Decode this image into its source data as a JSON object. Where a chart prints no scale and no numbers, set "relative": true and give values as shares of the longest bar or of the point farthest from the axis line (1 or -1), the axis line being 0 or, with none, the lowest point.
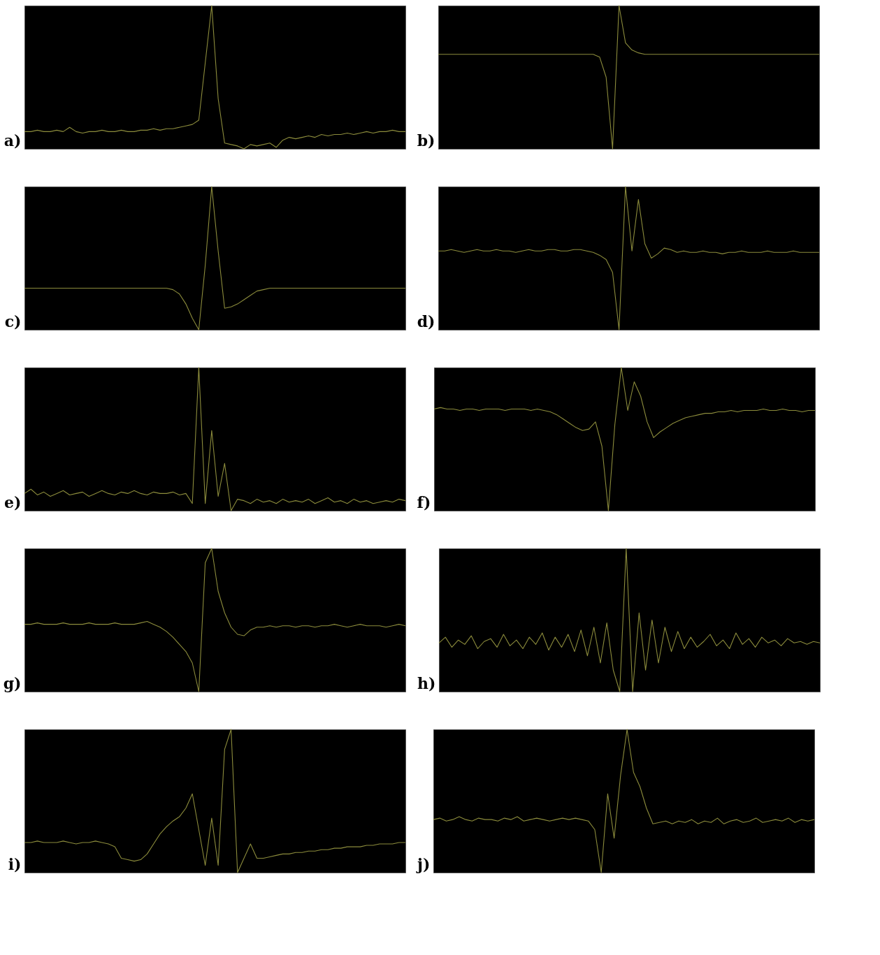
{
  "chart_data": [
    {
      "type": "line",
      "relative": true,
      "tick_labels": false,
      "title": "a)",
      "categories": [
        null,
        null,
        null,
        null,
        null,
        null,
        null,
        null,
        null,
        null,
        null,
        null,
        null,
        null,
        null,
        null,
        null,
        null,
        null,
        null,
        null,
        null,
        null,
        null,
        null,
        null,
        null,
        null,
        null,
        null,
        null,
        null,
        null,
        null,
        null,
        null,
        null,
        null,
        null,
        null,
        null,
        null,
        null,
        null,
        null,
        null,
        null,
        null,
        null,
        null,
        null,
        null,
        null,
        null,
        null,
        null,
        null,
        null,
        null,
        null
      ],
      "series": [
        {
          "color": "#8c8c3c",
          "values": [
            0.12,
            0.12,
            0.13,
            0.12,
            0.12,
            0.13,
            0.12,
            0.15,
            0.12,
            0.11,
            0.12,
            0.12,
            0.13,
            0.12,
            0.12,
            0.13,
            0.12,
            0.12,
            0.13,
            0.13,
            0.14,
            0.13,
            0.14,
            0.14,
            0.15,
            0.16,
            0.17,
            0.2,
            0.6,
            1.0,
            0.35,
            0.04,
            0.03,
            0.02,
            0.0,
            0.03,
            0.02,
            0.03,
            0.04,
            0.01,
            0.06,
            0.08,
            0.07,
            0.08,
            0.09,
            0.08,
            0.1,
            0.09,
            0.1,
            0.1,
            0.11,
            0.1,
            0.11,
            0.12,
            0.11,
            0.12,
            0.12,
            0.13,
            0.12,
            0.12
          ]
        }
      ]
    },
    {
      "type": "line",
      "relative": true,
      "tick_labels": false,
      "title": "b)",
      "categories": [
        null,
        null,
        null,
        null,
        null,
        null,
        null,
        null,
        null,
        null,
        null,
        null,
        null,
        null,
        null,
        null,
        null,
        null,
        null,
        null,
        null,
        null,
        null,
        null,
        null,
        null,
        null,
        null,
        null,
        null,
        null,
        null,
        null,
        null,
        null,
        null,
        null,
        null,
        null,
        null,
        null,
        null,
        null,
        null,
        null,
        null,
        null,
        null,
        null,
        null,
        null,
        null,
        null,
        null,
        null,
        null,
        null,
        null,
        null,
        null
      ],
      "series": [
        {
          "color": "#8c8c3c",
          "values": [
            0.66,
            0.66,
            0.66,
            0.66,
            0.66,
            0.66,
            0.66,
            0.66,
            0.66,
            0.66,
            0.66,
            0.66,
            0.66,
            0.66,
            0.66,
            0.66,
            0.66,
            0.66,
            0.66,
            0.66,
            0.66,
            0.66,
            0.66,
            0.66,
            0.66,
            0.64,
            0.5,
            0.0,
            1.0,
            0.74,
            0.69,
            0.67,
            0.66,
            0.66,
            0.66,
            0.66,
            0.66,
            0.66,
            0.66,
            0.66,
            0.66,
            0.66,
            0.66,
            0.66,
            0.66,
            0.66,
            0.66,
            0.66,
            0.66,
            0.66,
            0.66,
            0.66,
            0.66,
            0.66,
            0.66,
            0.66,
            0.66,
            0.66,
            0.66,
            0.66
          ]
        }
      ]
    },
    {
      "type": "line",
      "relative": true,
      "tick_labels": false,
      "title": "c)",
      "categories": [
        null,
        null,
        null,
        null,
        null,
        null,
        null,
        null,
        null,
        null,
        null,
        null,
        null,
        null,
        null,
        null,
        null,
        null,
        null,
        null,
        null,
        null,
        null,
        null,
        null,
        null,
        null,
        null,
        null,
        null,
        null,
        null,
        null,
        null,
        null,
        null,
        null,
        null,
        null,
        null,
        null,
        null,
        null,
        null,
        null,
        null,
        null,
        null,
        null,
        null,
        null,
        null,
        null,
        null,
        null,
        null,
        null,
        null,
        null,
        null
      ],
      "series": [
        {
          "color": "#8c8c3c",
          "values": [
            0.29,
            0.29,
            0.29,
            0.29,
            0.29,
            0.29,
            0.29,
            0.29,
            0.29,
            0.29,
            0.29,
            0.29,
            0.29,
            0.29,
            0.29,
            0.29,
            0.29,
            0.29,
            0.29,
            0.29,
            0.29,
            0.29,
            0.29,
            0.28,
            0.25,
            0.18,
            0.08,
            0.0,
            0.45,
            1.0,
            0.55,
            0.15,
            0.16,
            0.18,
            0.21,
            0.24,
            0.27,
            0.28,
            0.29,
            0.29,
            0.29,
            0.29,
            0.29,
            0.29,
            0.29,
            0.29,
            0.29,
            0.29,
            0.29,
            0.29,
            0.29,
            0.29,
            0.29,
            0.29,
            0.29,
            0.29,
            0.29,
            0.29,
            0.29,
            0.29
          ]
        }
      ]
    },
    {
      "type": "line",
      "relative": true,
      "tick_labels": false,
      "title": "d)",
      "categories": [
        null,
        null,
        null,
        null,
        null,
        null,
        null,
        null,
        null,
        null,
        null,
        null,
        null,
        null,
        null,
        null,
        null,
        null,
        null,
        null,
        null,
        null,
        null,
        null,
        null,
        null,
        null,
        null,
        null,
        null,
        null,
        null,
        null,
        null,
        null,
        null,
        null,
        null,
        null,
        null,
        null,
        null,
        null,
        null,
        null,
        null,
        null,
        null,
        null,
        null,
        null,
        null,
        null,
        null,
        null,
        null,
        null,
        null,
        null,
        null
      ],
      "series": [
        {
          "color": "#8c8c3c",
          "values": [
            0.55,
            0.55,
            0.56,
            0.55,
            0.54,
            0.55,
            0.56,
            0.55,
            0.55,
            0.56,
            0.55,
            0.55,
            0.54,
            0.55,
            0.56,
            0.55,
            0.55,
            0.56,
            0.56,
            0.55,
            0.55,
            0.56,
            0.56,
            0.55,
            0.54,
            0.52,
            0.49,
            0.4,
            0.0,
            1.0,
            0.55,
            0.91,
            0.6,
            0.5,
            0.53,
            0.57,
            0.56,
            0.54,
            0.55,
            0.54,
            0.54,
            0.55,
            0.54,
            0.54,
            0.53,
            0.54,
            0.54,
            0.55,
            0.54,
            0.54,
            0.54,
            0.55,
            0.54,
            0.54,
            0.54,
            0.55,
            0.54,
            0.54,
            0.54,
            0.54
          ]
        }
      ]
    },
    {
      "type": "line",
      "relative": true,
      "tick_labels": false,
      "title": "e)",
      "categories": [
        null,
        null,
        null,
        null,
        null,
        null,
        null,
        null,
        null,
        null,
        null,
        null,
        null,
        null,
        null,
        null,
        null,
        null,
        null,
        null,
        null,
        null,
        null,
        null,
        null,
        null,
        null,
        null,
        null,
        null,
        null,
        null,
        null,
        null,
        null,
        null,
        null,
        null,
        null,
        null,
        null,
        null,
        null,
        null,
        null,
        null,
        null,
        null,
        null,
        null,
        null,
        null,
        null,
        null,
        null,
        null,
        null,
        null,
        null,
        null
      ],
      "series": [
        {
          "color": "#8c8c3c",
          "values": [
            0.12,
            0.15,
            0.11,
            0.13,
            0.1,
            0.12,
            0.14,
            0.11,
            0.12,
            0.13,
            0.1,
            0.12,
            0.14,
            0.12,
            0.11,
            0.13,
            0.12,
            0.14,
            0.12,
            0.11,
            0.13,
            0.12,
            0.12,
            0.13,
            0.11,
            0.12,
            0.05,
            1.0,
            0.05,
            0.56,
            0.1,
            0.33,
            0.0,
            0.08,
            0.07,
            0.05,
            0.08,
            0.06,
            0.07,
            0.05,
            0.08,
            0.06,
            0.07,
            0.06,
            0.08,
            0.05,
            0.07,
            0.09,
            0.06,
            0.07,
            0.05,
            0.08,
            0.06,
            0.07,
            0.05,
            0.06,
            0.07,
            0.06,
            0.08,
            0.07
          ]
        }
      ]
    },
    {
      "type": "line",
      "relative": true,
      "tick_labels": false,
      "title": "f)",
      "categories": [
        null,
        null,
        null,
        null,
        null,
        null,
        null,
        null,
        null,
        null,
        null,
        null,
        null,
        null,
        null,
        null,
        null,
        null,
        null,
        null,
        null,
        null,
        null,
        null,
        null,
        null,
        null,
        null,
        null,
        null,
        null,
        null,
        null,
        null,
        null,
        null,
        null,
        null,
        null,
        null,
        null,
        null,
        null,
        null,
        null,
        null,
        null,
        null,
        null,
        null,
        null,
        null,
        null,
        null,
        null,
        null,
        null,
        null,
        null,
        null
      ],
      "series": [
        {
          "color": "#8c8c3c",
          "values": [
            0.71,
            0.72,
            0.71,
            0.71,
            0.7,
            0.71,
            0.71,
            0.7,
            0.71,
            0.71,
            0.71,
            0.7,
            0.71,
            0.71,
            0.71,
            0.7,
            0.71,
            0.7,
            0.69,
            0.67,
            0.64,
            0.61,
            0.58,
            0.56,
            0.57,
            0.62,
            0.45,
            0.0,
            0.6,
            1.0,
            0.7,
            0.9,
            0.8,
            0.62,
            0.51,
            0.55,
            0.58,
            0.61,
            0.63,
            0.65,
            0.66,
            0.67,
            0.68,
            0.68,
            0.69,
            0.69,
            0.7,
            0.69,
            0.7,
            0.7,
            0.7,
            0.71,
            0.7,
            0.7,
            0.71,
            0.7,
            0.7,
            0.69,
            0.7,
            0.7
          ]
        }
      ]
    },
    {
      "type": "line",
      "relative": true,
      "tick_labels": false,
      "title": "g)",
      "categories": [
        null,
        null,
        null,
        null,
        null,
        null,
        null,
        null,
        null,
        null,
        null,
        null,
        null,
        null,
        null,
        null,
        null,
        null,
        null,
        null,
        null,
        null,
        null,
        null,
        null,
        null,
        null,
        null,
        null,
        null,
        null,
        null,
        null,
        null,
        null,
        null,
        null,
        null,
        null,
        null,
        null,
        null,
        null,
        null,
        null,
        null,
        null,
        null,
        null,
        null,
        null,
        null,
        null,
        null,
        null,
        null,
        null,
        null,
        null,
        null
      ],
      "series": [
        {
          "color": "#8c8c3c",
          "values": [
            0.47,
            0.47,
            0.48,
            0.47,
            0.47,
            0.47,
            0.48,
            0.47,
            0.47,
            0.47,
            0.48,
            0.47,
            0.47,
            0.47,
            0.48,
            0.47,
            0.47,
            0.47,
            0.48,
            0.49,
            0.47,
            0.45,
            0.42,
            0.38,
            0.33,
            0.28,
            0.2,
            0.0,
            0.9,
            1.0,
            0.7,
            0.55,
            0.45,
            0.4,
            0.39,
            0.43,
            0.45,
            0.45,
            0.46,
            0.45,
            0.46,
            0.46,
            0.45,
            0.46,
            0.46,
            0.45,
            0.46,
            0.46,
            0.47,
            0.46,
            0.45,
            0.46,
            0.47,
            0.46,
            0.46,
            0.46,
            0.45,
            0.46,
            0.47,
            0.46
          ]
        }
      ]
    },
    {
      "type": "line",
      "relative": true,
      "tick_labels": false,
      "title": "h)",
      "categories": [
        null,
        null,
        null,
        null,
        null,
        null,
        null,
        null,
        null,
        null,
        null,
        null,
        null,
        null,
        null,
        null,
        null,
        null,
        null,
        null,
        null,
        null,
        null,
        null,
        null,
        null,
        null,
        null,
        null,
        null,
        null,
        null,
        null,
        null,
        null,
        null,
        null,
        null,
        null,
        null,
        null,
        null,
        null,
        null,
        null,
        null,
        null,
        null,
        null,
        null,
        null,
        null,
        null,
        null,
        null,
        null,
        null,
        null,
        null,
        null
      ],
      "series": [
        {
          "color": "#8c8c3c",
          "values": [
            0.34,
            0.38,
            0.31,
            0.36,
            0.33,
            0.39,
            0.3,
            0.35,
            0.37,
            0.31,
            0.4,
            0.32,
            0.36,
            0.3,
            0.38,
            0.33,
            0.41,
            0.29,
            0.38,
            0.31,
            0.4,
            0.28,
            0.43,
            0.25,
            0.45,
            0.2,
            0.48,
            0.15,
            0.0,
            1.0,
            0.0,
            0.55,
            0.15,
            0.5,
            0.2,
            0.45,
            0.28,
            0.42,
            0.3,
            0.38,
            0.31,
            0.35,
            0.4,
            0.32,
            0.36,
            0.3,
            0.41,
            0.33,
            0.37,
            0.31,
            0.38,
            0.34,
            0.36,
            0.32,
            0.37,
            0.34,
            0.35,
            0.33,
            0.35,
            0.34
          ]
        }
      ]
    },
    {
      "type": "line",
      "relative": true,
      "tick_labels": false,
      "title": "i)",
      "categories": [
        null,
        null,
        null,
        null,
        null,
        null,
        null,
        null,
        null,
        null,
        null,
        null,
        null,
        null,
        null,
        null,
        null,
        null,
        null,
        null,
        null,
        null,
        null,
        null,
        null,
        null,
        null,
        null,
        null,
        null,
        null,
        null,
        null,
        null,
        null,
        null,
        null,
        null,
        null,
        null,
        null,
        null,
        null,
        null,
        null,
        null,
        null,
        null,
        null,
        null,
        null,
        null,
        null,
        null,
        null,
        null,
        null,
        null,
        null,
        null
      ],
      "series": [
        {
          "color": "#8c8c3c",
          "values": [
            0.21,
            0.21,
            0.22,
            0.21,
            0.21,
            0.21,
            0.22,
            0.21,
            0.2,
            0.21,
            0.21,
            0.22,
            0.21,
            0.2,
            0.18,
            0.1,
            0.09,
            0.08,
            0.09,
            0.13,
            0.2,
            0.27,
            0.32,
            0.36,
            0.39,
            0.45,
            0.55,
            0.3,
            0.05,
            0.38,
            0.05,
            0.86,
            1.0,
            0.0,
            0.1,
            0.2,
            0.1,
            0.1,
            0.11,
            0.12,
            0.13,
            0.13,
            0.14,
            0.14,
            0.15,
            0.15,
            0.16,
            0.16,
            0.17,
            0.17,
            0.18,
            0.18,
            0.18,
            0.19,
            0.19,
            0.2,
            0.2,
            0.2,
            0.21,
            0.21
          ]
        }
      ]
    },
    {
      "type": "line",
      "relative": true,
      "tick_labels": false,
      "title": "j)",
      "categories": [
        null,
        null,
        null,
        null,
        null,
        null,
        null,
        null,
        null,
        null,
        null,
        null,
        null,
        null,
        null,
        null,
        null,
        null,
        null,
        null,
        null,
        null,
        null,
        null,
        null,
        null,
        null,
        null,
        null,
        null,
        null,
        null,
        null,
        null,
        null,
        null,
        null,
        null,
        null,
        null,
        null,
        null,
        null,
        null,
        null,
        null,
        null,
        null,
        null,
        null,
        null,
        null,
        null,
        null,
        null,
        null,
        null,
        null,
        null,
        null
      ],
      "series": [
        {
          "color": "#8c8c3c",
          "values": [
            0.37,
            0.38,
            0.36,
            0.37,
            0.39,
            0.37,
            0.36,
            0.38,
            0.37,
            0.37,
            0.36,
            0.38,
            0.37,
            0.39,
            0.36,
            0.37,
            0.38,
            0.37,
            0.36,
            0.37,
            0.38,
            0.37,
            0.38,
            0.37,
            0.36,
            0.3,
            0.0,
            0.55,
            0.24,
            0.68,
            1.0,
            0.7,
            0.6,
            0.45,
            0.34,
            0.35,
            0.36,
            0.34,
            0.36,
            0.35,
            0.37,
            0.34,
            0.36,
            0.35,
            0.38,
            0.34,
            0.36,
            0.37,
            0.35,
            0.36,
            0.38,
            0.35,
            0.36,
            0.37,
            0.36,
            0.38,
            0.35,
            0.37,
            0.36,
            0.37
          ]
        }
      ]
    }
  ]
}
